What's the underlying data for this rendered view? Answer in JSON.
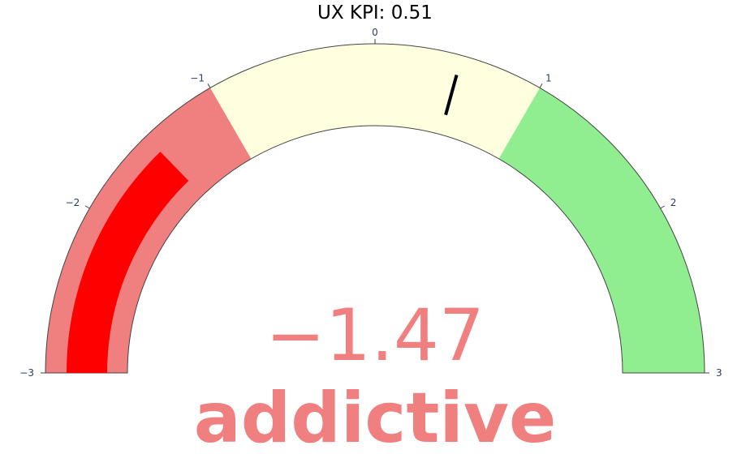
{
  "chart_data": {
    "type": "gauge",
    "title": "UX KPI: 0.51",
    "value": -1.47,
    "value_display": "−1.47",
    "label": "addictive",
    "range": [
      -3,
      3
    ],
    "ticks": [
      -3,
      -2,
      -1,
      0,
      1,
      2,
      3
    ],
    "tick_labels": [
      "−3",
      "−2",
      "−1",
      "0",
      "1",
      "2",
      "3"
    ],
    "steps": [
      {
        "from": -3,
        "to": -1,
        "color": "#f08080"
      },
      {
        "from": -1,
        "to": 1,
        "color": "#ffffe0"
      },
      {
        "from": 1,
        "to": 3,
        "color": "#90ee90"
      }
    ],
    "bar": {
      "color": "#ff0000"
    },
    "threshold": {
      "value": 0.51,
      "color": "#000000"
    },
    "number_color": "#f08080",
    "label_color": "#f08080"
  }
}
